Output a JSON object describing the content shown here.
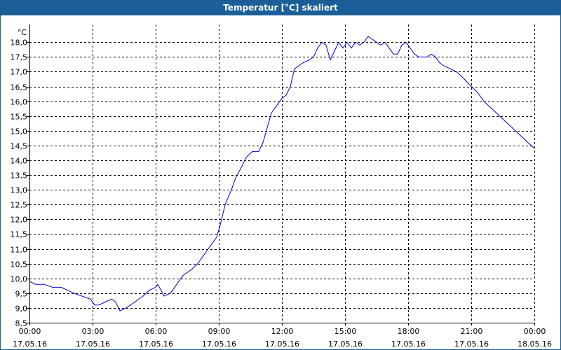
{
  "window": {
    "title": "Temperatur [°C] skaliert"
  },
  "colors": {
    "titlebar": "#1a5f97",
    "line": "#0000cc",
    "grid": "#000000"
  },
  "chart_data": {
    "type": "line",
    "title": "Temperatur [°C] skaliert",
    "ylabel": "°C",
    "ylim": [
      8.5,
      18.6
    ],
    "xlim": [
      0,
      24
    ],
    "yticks": [
      "8,5",
      "9,0",
      "9,5",
      "10,0",
      "10,5",
      "11,0",
      "11,5",
      "12,0",
      "12,5",
      "13,0",
      "13,5",
      "14,0",
      "14,5",
      "15,0",
      "15,5",
      "16,0",
      "16,5",
      "17,0",
      "17,5",
      "18,0"
    ],
    "ytick_values": [
      8.5,
      9.0,
      9.5,
      10.0,
      10.5,
      11.0,
      11.5,
      12.0,
      12.5,
      13.0,
      13.5,
      14.0,
      14.5,
      15.0,
      15.5,
      16.0,
      16.5,
      17.0,
      17.5,
      18.0
    ],
    "xticks": [
      {
        "time": "00:00",
        "date": "17.05.16"
      },
      {
        "time": "03:00",
        "date": "17.05.16"
      },
      {
        "time": "06:00",
        "date": "17.05.16"
      },
      {
        "time": "09:00",
        "date": "17.05.16"
      },
      {
        "time": "12:00",
        "date": "17.05.16"
      },
      {
        "time": "15:00",
        "date": "17.05.16"
      },
      {
        "time": "18:00",
        "date": "17.05.16"
      },
      {
        "time": "21:00",
        "date": "17.05.16"
      },
      {
        "time": "00:00",
        "date": "18.05.16"
      }
    ],
    "grid": true,
    "series": [
      {
        "points": [
          [
            0.0,
            9.9
          ],
          [
            0.3,
            9.8
          ],
          [
            0.7,
            9.8
          ],
          [
            1.1,
            9.7
          ],
          [
            1.5,
            9.7
          ],
          [
            1.8,
            9.6
          ],
          [
            2.1,
            9.5
          ],
          [
            2.5,
            9.4
          ],
          [
            2.9,
            9.3
          ],
          [
            3.1,
            9.1
          ],
          [
            3.3,
            9.1
          ],
          [
            3.6,
            9.2
          ],
          [
            3.9,
            9.3
          ],
          [
            4.1,
            9.2
          ],
          [
            4.3,
            8.9
          ],
          [
            4.6,
            9.0
          ],
          [
            5.0,
            9.2
          ],
          [
            5.4,
            9.4
          ],
          [
            5.7,
            9.6
          ],
          [
            6.0,
            9.7
          ],
          [
            6.1,
            9.8
          ],
          [
            6.4,
            9.4
          ],
          [
            6.7,
            9.5
          ],
          [
            7.0,
            9.8
          ],
          [
            7.3,
            10.1
          ],
          [
            7.7,
            10.3
          ],
          [
            8.0,
            10.5
          ],
          [
            8.3,
            10.8
          ],
          [
            8.6,
            11.1
          ],
          [
            8.9,
            11.4
          ],
          [
            9.1,
            11.9
          ],
          [
            9.3,
            12.5
          ],
          [
            9.6,
            13.0
          ],
          [
            9.8,
            13.4
          ],
          [
            10.1,
            13.8
          ],
          [
            10.3,
            14.1
          ],
          [
            10.6,
            14.3
          ],
          [
            10.9,
            14.3
          ],
          [
            11.1,
            14.6
          ],
          [
            11.3,
            15.1
          ],
          [
            11.5,
            15.6
          ],
          [
            11.8,
            15.9
          ],
          [
            12.0,
            16.1
          ],
          [
            12.2,
            16.2
          ],
          [
            12.4,
            16.5
          ],
          [
            12.6,
            17.1
          ],
          [
            12.8,
            17.2
          ],
          [
            13.0,
            17.3
          ],
          [
            13.3,
            17.4
          ],
          [
            13.5,
            17.5
          ],
          [
            13.7,
            17.8
          ],
          [
            13.9,
            18.0
          ],
          [
            14.1,
            17.9
          ],
          [
            14.3,
            17.4
          ],
          [
            14.5,
            17.7
          ],
          [
            14.7,
            18.0
          ],
          [
            14.9,
            17.8
          ],
          [
            15.1,
            18.0
          ],
          [
            15.3,
            17.8
          ],
          [
            15.5,
            18.0
          ],
          [
            15.7,
            17.9
          ],
          [
            15.9,
            18.0
          ],
          [
            16.1,
            18.2
          ],
          [
            16.3,
            18.1
          ],
          [
            16.5,
            18.0
          ],
          [
            16.7,
            17.9
          ],
          [
            16.9,
            18.0
          ],
          [
            17.1,
            17.8
          ],
          [
            17.3,
            17.6
          ],
          [
            17.5,
            17.6
          ],
          [
            17.7,
            17.9
          ],
          [
            17.9,
            18.0
          ],
          [
            18.1,
            17.8
          ],
          [
            18.3,
            17.6
          ],
          [
            18.5,
            17.5
          ],
          [
            18.7,
            17.5
          ],
          [
            18.9,
            17.5
          ],
          [
            19.1,
            17.6
          ],
          [
            19.3,
            17.5
          ],
          [
            19.5,
            17.3
          ],
          [
            19.7,
            17.2
          ],
          [
            20.0,
            17.1
          ],
          [
            20.3,
            17.0
          ],
          [
            20.6,
            16.8
          ],
          [
            21.0,
            16.5
          ],
          [
            21.3,
            16.3
          ],
          [
            21.6,
            16.0
          ],
          [
            21.9,
            15.8
          ],
          [
            22.2,
            15.6
          ],
          [
            22.5,
            15.4
          ],
          [
            22.8,
            15.2
          ],
          [
            23.1,
            15.0
          ],
          [
            23.4,
            14.8
          ],
          [
            23.7,
            14.6
          ],
          [
            24.0,
            14.4
          ]
        ]
      }
    ]
  }
}
